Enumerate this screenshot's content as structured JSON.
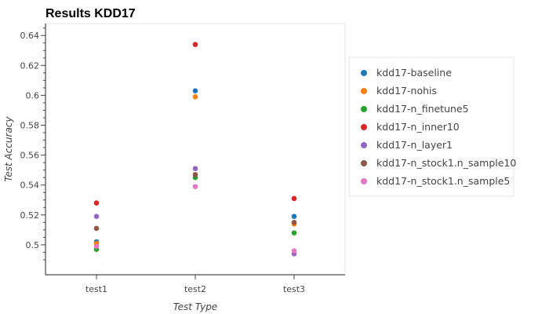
{
  "chart_data": {
    "type": "scatter",
    "title": "Results KDD17",
    "xlabel": "Test Type",
    "ylabel": "Test Accuracy",
    "categories": [
      "test1",
      "test2",
      "test3"
    ],
    "ylim": [
      0.48,
      0.648
    ],
    "yticks": [
      0.5,
      0.52,
      0.54,
      0.56,
      0.58,
      0.6,
      0.62,
      0.64
    ],
    "grid": false,
    "legend_position": "right",
    "series": [
      {
        "name": "kdd17-baseline",
        "color": "#1f77b4",
        "values": [
          0.502,
          0.603,
          0.519
        ]
      },
      {
        "name": "kdd17-nohis",
        "color": "#ff7f0e",
        "values": [
          0.501,
          0.599,
          0.514
        ]
      },
      {
        "name": "kdd17-n_finetune5",
        "color": "#2ca02c",
        "values": [
          0.497,
          0.545,
          0.508
        ]
      },
      {
        "name": "kdd17-n_inner10",
        "color": "#d62728",
        "values": [
          0.528,
          0.634,
          0.531
        ]
      },
      {
        "name": "kdd17-n_layer1",
        "color": "#9467bd",
        "values": [
          0.519,
          0.551,
          0.494
        ]
      },
      {
        "name": "kdd17-n_stock1.n_sample10",
        "color": "#8c564b",
        "values": [
          0.511,
          0.547,
          0.515
        ]
      },
      {
        "name": "kdd17-n_stock1.n_sample5",
        "color": "#e377c2",
        "values": [
          0.499,
          0.539,
          0.496
        ]
      }
    ]
  }
}
